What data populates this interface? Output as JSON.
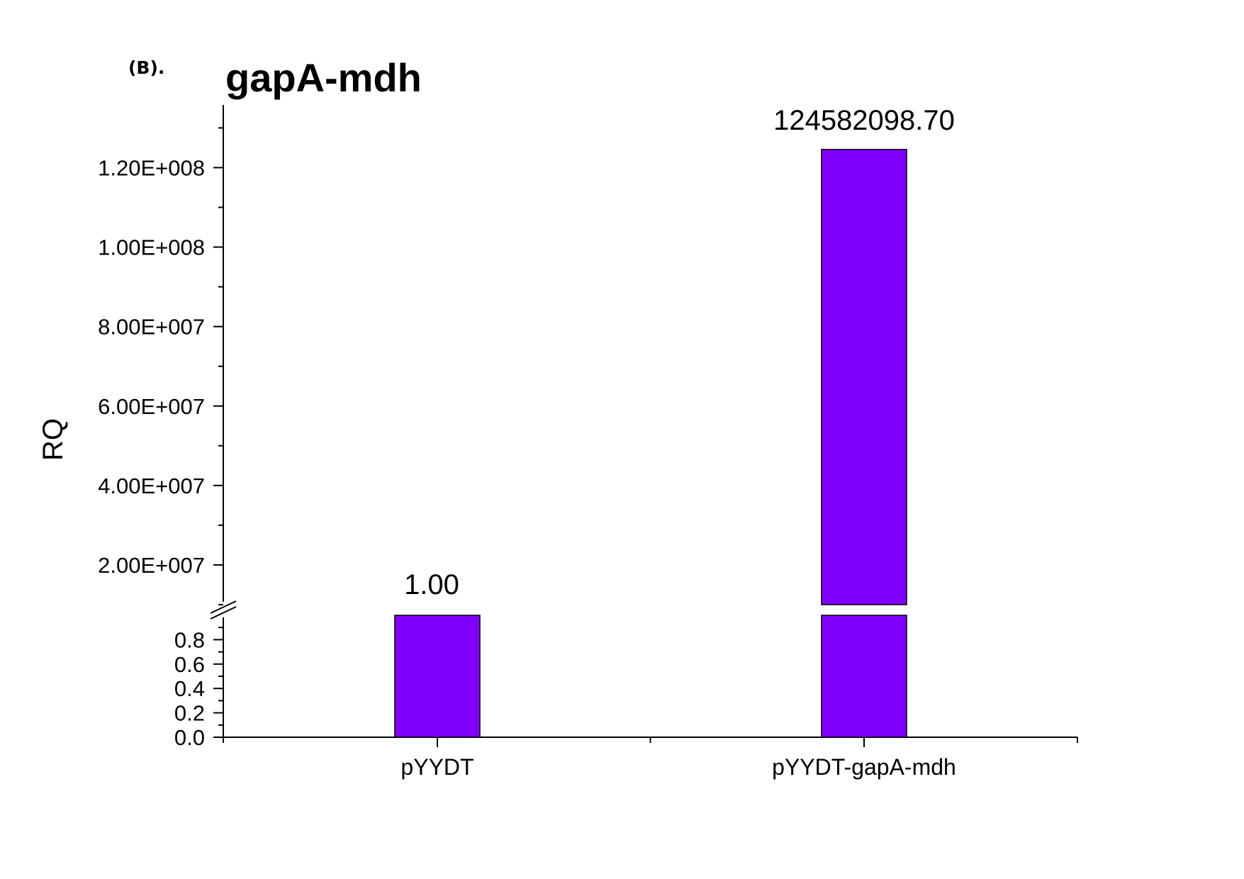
{
  "panel_label": "(B).",
  "chart_data": {
    "type": "bar",
    "title": "gapA-mdh",
    "ylabel": "RQ",
    "xlabel": "",
    "categories": [
      "pYYDT",
      "pYYDT-gapA-mdh"
    ],
    "values": [
      1.0,
      124582098.7
    ],
    "data_labels": [
      "1.00",
      "124582098.70"
    ],
    "bar_color": "#7F00FF",
    "axis_break": true,
    "lower_segment": {
      "ylim": [
        0,
        1.0
      ],
      "ticks": [
        0.0,
        0.2,
        0.4,
        0.6,
        0.8
      ],
      "tick_labels": [
        "0.0",
        "0.2",
        "0.4",
        "0.6",
        "0.8"
      ]
    },
    "upper_segment": {
      "ylim": [
        10000000,
        134000000
      ],
      "ticks": [
        20000000,
        40000000,
        60000000,
        80000000,
        100000000,
        120000000
      ],
      "tick_labels": [
        "2.00E+007",
        "4.00E+007",
        "6.00E+007",
        "8.00E+007",
        "1.00E+008",
        "1.20E+008"
      ]
    },
    "grid": false,
    "legend": "none"
  }
}
